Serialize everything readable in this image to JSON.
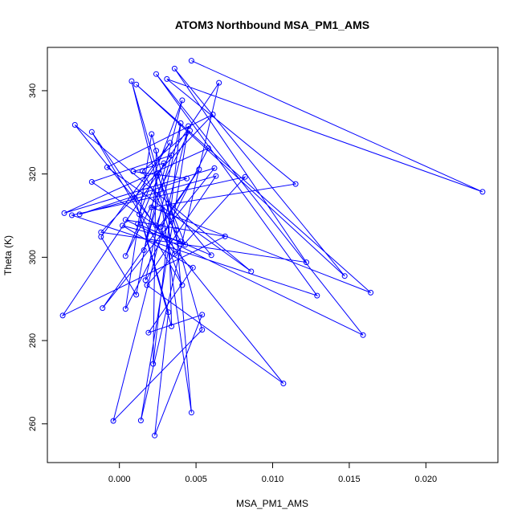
{
  "chart_data": {
    "type": "line",
    "markers": "open-circle",
    "color": "#0000ff",
    "title": "ATOM3 Northbound MSA_PM1_AMS",
    "xlabel": "MSA_PM1_AMS",
    "ylabel": "Theta (K)",
    "xlim": [
      -0.0047,
      0.0247
    ],
    "ylim": [
      250.7,
      350.4
    ],
    "xticks": [
      0.0,
      0.005,
      0.01,
      0.015,
      0.02
    ],
    "xtick_labels": [
      "0.000",
      "0.005",
      "0.010",
      "0.015",
      "0.020"
    ],
    "yticks": [
      260,
      280,
      300,
      320,
      340
    ],
    "ytick_labels": [
      "260",
      "280",
      "300",
      "320",
      "340"
    ],
    "grid": false,
    "x": [
      0.0047,
      0.0237,
      0.0031,
      0.0115,
      0.0021,
      0.0164,
      0.0011,
      0.0147,
      0.0036,
      0.0122,
      -0.0012,
      0.0061,
      -0.0008,
      0.0086,
      -0.0029,
      0.0107,
      0.0018,
      0.0082,
      -0.0031,
      0.0129,
      0.0024,
      0.0159,
      0.0004,
      0.0069,
      -0.0037,
      0.0065,
      0.0014,
      0.0045,
      -0.0004,
      0.0054,
      0.0008,
      0.0036,
      -0.0018,
      0.0041,
      0.0027,
      0.0052,
      -0.0011,
      0.0062,
      -0.0036,
      0.0058,
      0.0004,
      0.0021,
      0.0037,
      0.0047,
      0.0028,
      0.0024,
      -0.0018,
      0.0034,
      0.0016,
      0.0041,
      0.0013,
      0.0034,
      0.0032,
      0.006,
      0.0012,
      0.0043,
      0.0025,
      0.0011,
      -0.0012,
      0.0033,
      0.001,
      0.0032,
      0.0023,
      0.0054,
      0.0019,
      0.0048,
      0.0002,
      0.004,
      0.0015,
      0.0046,
      0.0004,
      0.0029,
      0.0009,
      0.0044,
      -0.0026,
      0.0063,
      0.0017,
      0.004,
      0.0022,
      0.0024
    ],
    "y": [
      347.2,
      315.7,
      342.8,
      317.6,
      312.0,
      291.5,
      341.5,
      295.5,
      345.3,
      298.8,
      306.0,
      334.3,
      321.6,
      296.6,
      331.8,
      269.7,
      293.3,
      319.3,
      310.1,
      290.8,
      344.0,
      281.3,
      309.0,
      305.0,
      286.0,
      341.9,
      260.8,
      331.5,
      260.7,
      282.6,
      342.3,
      300.8,
      330.1,
      293.3,
      307.3,
      321.1,
      287.8,
      321.4,
      310.6,
      326.2,
      287.6,
      329.6,
      306.6,
      262.7,
      311.6,
      307.6,
      318.1,
      324.5,
      301.7,
      337.7,
      310.3,
      283.4,
      312.9,
      300.5,
      308.0,
      303.0,
      319.6,
      291.0,
      304.9,
      327.5,
      314.3,
      286.8,
      257.2,
      286.2,
      281.9,
      297.5,
      307.6,
      303.8,
      320.7,
      330.4,
      300.3,
      322.6,
      320.6,
      318.9,
      310.3,
      319.5,
      294.5,
      332.2,
      274.4,
      325.6
    ]
  }
}
